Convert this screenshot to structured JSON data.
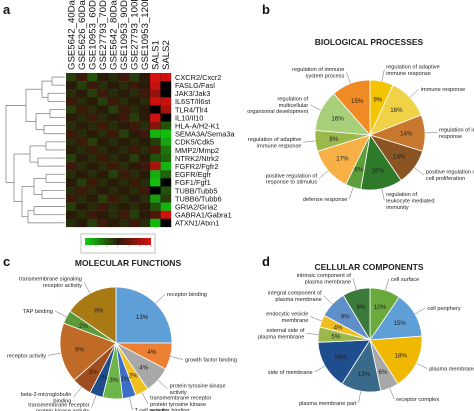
{
  "panels": {
    "a": {
      "letter": "a",
      "columns": [
        "GSE5642_40Days",
        "GSE5626_60Days",
        "GSE10953_60Days",
        "GSE27793_70Days",
        "GSE5642_80Days",
        "GSE10953_90Days",
        "GSE27793_100Days",
        "GSE10953_120Days",
        "SALS1",
        "SALS2"
      ],
      "rows": [
        "CXCR2/Cxcr2",
        "FASLG/Fasl",
        "JAK3/Jak3",
        "IL6ST/Il6st",
        "TLR4/Tlr4",
        "IL10/Il10",
        "HLA-A/H2-K1",
        "SEMA3A/Sema3a",
        "CDK5/Cdk5",
        "MMP2/Mmp2",
        "NTRK2/Ntrk2",
        "FGFR2/Fgfr2",
        "EGFR/Egfr",
        "FGF1/Fgf1",
        "TUBB/Tubb5",
        "TUBB6/Tubb6",
        "GRIA2/Gria2",
        "GABRA1/Gabra1",
        "ATXN1/Atxn1"
      ],
      "values": [
        [
          -0.2,
          0.1,
          -0.3,
          0.0,
          -0.1,
          0.1,
          -0.2,
          0.0,
          0.95,
          0.9
        ],
        [
          0.0,
          -0.2,
          0.1,
          -0.1,
          0.0,
          -0.1,
          0.1,
          0.0,
          0.85,
          null
        ],
        [
          -0.1,
          0.0,
          -0.2,
          0.1,
          -0.1,
          0.0,
          -0.1,
          0.1,
          0.6,
          null
        ],
        [
          0.1,
          -0.1,
          0.0,
          -0.2,
          0.1,
          -0.1,
          0.0,
          -0.1,
          0.9,
          0.85
        ],
        [
          -0.2,
          0.1,
          -0.1,
          0.0,
          -0.2,
          0.1,
          -0.1,
          0.0,
          null,
          0.7
        ],
        [
          0.0,
          -0.1,
          0.1,
          -0.1,
          0.0,
          0.1,
          -0.2,
          0.0,
          0.9,
          null
        ],
        [
          -0.1,
          0.0,
          -0.1,
          0.1,
          -0.1,
          0.0,
          0.1,
          -0.1,
          0.5,
          -0.3
        ],
        [
          0.1,
          -0.1,
          0.0,
          -0.1,
          0.1,
          -0.2,
          0.0,
          0.1,
          -0.85,
          -0.9
        ],
        [
          -0.1,
          0.1,
          -0.2,
          0.0,
          -0.1,
          0.0,
          -0.1,
          0.0,
          -0.2,
          -0.75
        ],
        [
          0.0,
          -0.1,
          0.1,
          -0.1,
          0.0,
          -0.1,
          0.1,
          -0.1,
          0.2,
          -0.5
        ],
        [
          -0.2,
          0.0,
          -0.1,
          0.1,
          -0.1,
          0.0,
          -0.2,
          0.0,
          -0.3,
          -0.4
        ],
        [
          0.1,
          -0.1,
          0.0,
          -0.1,
          0.1,
          -0.1,
          0.0,
          0.1,
          0.7,
          -0.85
        ],
        [
          -0.1,
          0.0,
          -0.1,
          0.0,
          -0.2,
          0.1,
          -0.1,
          0.0,
          -0.8,
          -0.4
        ],
        [
          0.0,
          -0.2,
          0.1,
          -0.1,
          0.0,
          -0.1,
          0.1,
          -0.1,
          -0.9,
          null
        ],
        [
          -0.1,
          0.1,
          -0.1,
          0.0,
          -0.1,
          0.0,
          -0.1,
          0.1,
          null,
          -0.3
        ],
        [
          0.1,
          -0.1,
          0.0,
          -0.2,
          0.1,
          -0.1,
          0.0,
          -0.1,
          -0.7,
          -0.2
        ],
        [
          -0.2,
          0.0,
          -0.1,
          0.1,
          -0.1,
          0.0,
          -0.1,
          0.0,
          -0.3,
          -0.85
        ],
        [
          0.0,
          -0.1,
          0.1,
          0.0,
          -0.1,
          0.1,
          -0.2,
          0.0,
          0.2,
          0.9
        ],
        [
          -0.1,
          0.0,
          -0.2,
          0.1,
          0.0,
          -0.1,
          0.1,
          -0.1,
          -0.85,
          null
        ]
      ],
      "colors": {
        "high": "#e01010",
        "mid": "#2a1a0a",
        "low": "#10d010",
        "missing": "#000000"
      }
    },
    "b": {
      "letter": "b",
      "title": "BIOLOGICAL PROCESSES",
      "slices": [
        {
          "pct": 9,
          "label": "regulation of adaptive immune response",
          "color": "#f5c400"
        },
        {
          "pct": 16,
          "label": "immune response",
          "color": "#f0d247"
        },
        {
          "pct": 14,
          "label": "regulation of immune response",
          "color": "#c8782e"
        },
        {
          "pct": 14,
          "label": "positive regulation of cell proliferation",
          "color": "#8a5522"
        },
        {
          "pct": 16,
          "label": "regulation of leukocyte mediated immunity",
          "color": "#2e7a2a"
        },
        {
          "pct": 6,
          "label": "defense response",
          "color": "#5e9e3c"
        },
        {
          "pct": 17,
          "label": "positive regulation of response to stimulus",
          "color": "#f7b045"
        },
        {
          "pct": 8,
          "label": "regulation of adaptive immune response",
          "color": "#9ab94a"
        },
        {
          "pct": 16,
          "label": "regulation of multicellular organismal development",
          "color": "#a8cf7a"
        },
        {
          "pct": 15,
          "label": "regulation of immune system process",
          "color": "#f08a24"
        }
      ]
    },
    "c": {
      "letter": "c",
      "title": "MOLECULAR FUNCTIONS",
      "slices": [
        {
          "pct": 13,
          "label": "receptor binding",
          "color": "#5f9fd8"
        },
        {
          "pct": 4,
          "label": "growth factor binding",
          "color": "#ec7f32"
        },
        {
          "pct": 4,
          "label": "protein tyrosine kinase activity",
          "color": "#a8a8a8"
        },
        {
          "pct": 2,
          "label": "transmembrane receptor protein tyrosine kinase activity",
          "color": "#f0c020"
        },
        {
          "pct": 2,
          "label": "T cell receptor binding",
          "color": "#3c6ec8"
        },
        {
          "pct": 3,
          "label": "",
          "color": "#6db548"
        },
        {
          "pct": 2,
          "label": "transmembrane receptor protein kinase activity",
          "color": "#1e4e8e"
        },
        {
          "pct": 3,
          "label": "beta-2-microglobulin binding",
          "color": "#9e4e1e"
        },
        {
          "pct": 9,
          "label": "receptor activity",
          "color": "#c06a28"
        },
        {
          "pct": 2,
          "label": "TAP binding",
          "color": "#5a9a3a"
        },
        {
          "pct": 8,
          "label": "transmembrane signaling receptor activity",
          "color": "#a87a14"
        }
      ]
    },
    "d": {
      "letter": "d",
      "title": "CELLULAR COMPONENTS",
      "slices": [
        {
          "pct": 10,
          "label": "cell surface",
          "color": "#6aaa3c"
        },
        {
          "pct": 15,
          "label": "cell periphery",
          "color": "#5f9fd8"
        },
        {
          "pct": 18,
          "label": "plasma membrane",
          "color": "#f0b800"
        },
        {
          "pct": 6,
          "label": "receptor complex",
          "color": "#a8a8a8"
        },
        {
          "pct": 13,
          "label": "plasma membrane part",
          "color": "#3a6a8a"
        },
        {
          "pct": 16,
          "label": "side of membrane",
          "color": "#1e4e8e"
        },
        {
          "pct": 5,
          "label": "external side of plasma membrane",
          "color": "#9ab94a"
        },
        {
          "pct": 4,
          "label": "endocytic vesicle membrane",
          "color": "#f0c020"
        },
        {
          "pct": 9,
          "label": "integral component of plasma membrane",
          "color": "#5f8fc8"
        },
        {
          "pct": 9,
          "label": "intrinsic component of plasma membrane",
          "color": "#3a7a3a"
        }
      ]
    }
  }
}
